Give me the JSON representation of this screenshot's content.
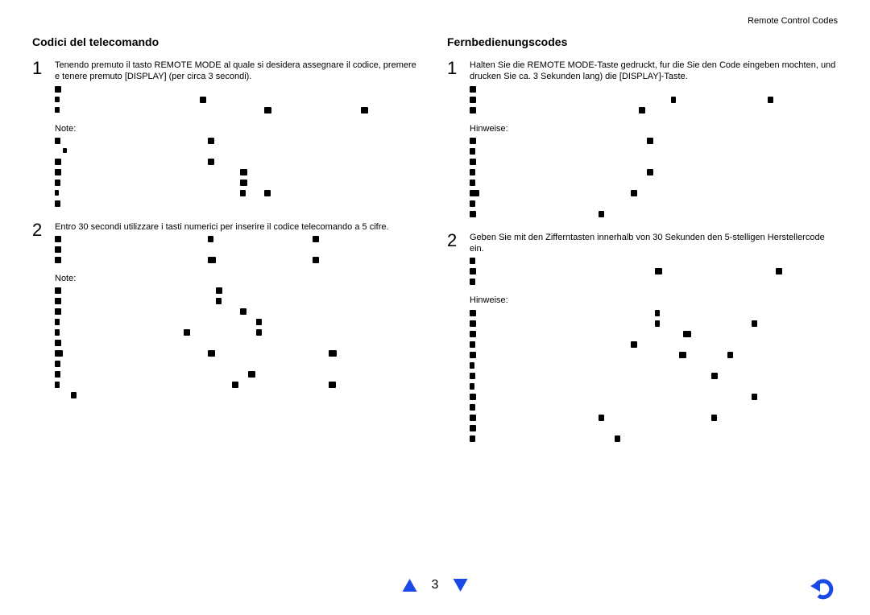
{
  "header": {
    "right": "Remote Control Codes"
  },
  "left": {
    "title": "Codici del telecomando",
    "step1": {
      "num": "1",
      "text": "Tenendo premuto il tasto REMOTE MODE al quale si desidera assegnare il codice, premere e tenere premuto [DISPLAY] (per circa 3 secondi).",
      "note": "Note:"
    },
    "step2": {
      "num": "2",
      "text": "Entro 30 secondi utilizzare i tasti numerici per inserire il codice telecomando a 5 cifre.",
      "note": "Note:"
    }
  },
  "right": {
    "title": "Fernbedienungscodes",
    "step1": {
      "num": "1",
      "text": "Halten Sie die REMOTE MODE-Taste gedruckt, fur die Sie den Code eingeben mochten, und drucken Sie ca. 3 Sekunden lang) die [DISPLAY]-Taste.",
      "note": "Hinweise:"
    },
    "step2": {
      "num": "2",
      "text": "Geben Sie mit den Zifferntasten innerhalb von 30 Sekunden den 5-stelligen Herstellercode ein.",
      "note": "Hinweise:"
    }
  },
  "footer": {
    "page": "3"
  },
  "colors": {
    "accent": "#1a49e6",
    "text": "#000000",
    "bg": "#ffffff"
  },
  "garble": {
    "left_s1_a": [
      [
        [
          0,
          8,
          8
        ]
      ],
      [
        [
          0,
          6,
          7
        ],
        [
          180,
          8,
          8
        ]
      ],
      [
        [
          0,
          6,
          7
        ],
        [
          260,
          9,
          8
        ],
        [
          380,
          9,
          8
        ]
      ]
    ],
    "left_s1_b": [
      [
        [
          0,
          7,
          8
        ],
        [
          190,
          8,
          8
        ]
      ],
      [
        [
          10,
          5,
          6
        ]
      ],
      [
        [
          0,
          8,
          8
        ],
        [
          190,
          8,
          8
        ]
      ],
      [
        [
          0,
          8,
          8
        ],
        [
          230,
          9,
          8
        ]
      ],
      [
        [
          0,
          7,
          8
        ],
        [
          230,
          9,
          8
        ]
      ],
      [
        [
          0,
          5,
          7
        ],
        [
          230,
          7,
          8
        ],
        [
          260,
          8,
          8
        ]
      ],
      [
        [
          0,
          7,
          8
        ]
      ]
    ],
    "left_s2_a": [
      [
        [
          0,
          8,
          8
        ],
        [
          190,
          7,
          8
        ],
        [
          320,
          8,
          8
        ]
      ],
      [
        [
          0,
          8,
          8
        ]
      ],
      [
        [
          0,
          8,
          8
        ],
        [
          190,
          10,
          8
        ],
        [
          320,
          8,
          8
        ]
      ]
    ],
    "left_s2_b": [
      [
        [
          0,
          8,
          8
        ],
        [
          200,
          8,
          8
        ]
      ],
      [
        [
          0,
          8,
          8
        ],
        [
          200,
          7,
          8
        ]
      ],
      [
        [
          0,
          8,
          8
        ],
        [
          230,
          8,
          8
        ]
      ],
      [
        [
          0,
          6,
          8
        ],
        [
          250,
          7,
          8
        ]
      ],
      [
        [
          0,
          6,
          8
        ],
        [
          160,
          8,
          8
        ],
        [
          250,
          7,
          8
        ]
      ],
      [
        [
          0,
          8,
          8
        ]
      ],
      [
        [
          0,
          10,
          8
        ],
        [
          190,
          9,
          8
        ],
        [
          340,
          10,
          8
        ]
      ],
      [
        [
          0,
          7,
          8
        ]
      ],
      [
        [
          0,
          7,
          8
        ],
        [
          240,
          9,
          8
        ]
      ],
      [
        [
          0,
          6,
          8
        ],
        [
          220,
          8,
          8
        ],
        [
          340,
          9,
          8
        ]
      ],
      [
        [
          20,
          7,
          8
        ]
      ]
    ],
    "right_s1_a": [
      [
        [
          0,
          8,
          8
        ]
      ],
      [
        [
          0,
          8,
          8
        ],
        [
          250,
          6,
          8
        ],
        [
          370,
          7,
          8
        ]
      ],
      [
        [
          0,
          8,
          8
        ],
        [
          210,
          8,
          8
        ]
      ]
    ],
    "right_s1_b": [
      [
        [
          0,
          8,
          8
        ],
        [
          220,
          8,
          8
        ]
      ],
      [
        [
          0,
          7,
          8
        ]
      ],
      [
        [
          0,
          8,
          8
        ]
      ],
      [
        [
          0,
          7,
          8
        ],
        [
          220,
          8,
          8
        ]
      ],
      [
        [
          0,
          7,
          8
        ]
      ],
      [
        [
          0,
          12,
          8
        ],
        [
          200,
          8,
          8
        ]
      ],
      [
        [
          0,
          7,
          8
        ]
      ],
      [
        [
          0,
          8,
          8
        ],
        [
          160,
          7,
          8
        ]
      ]
    ],
    "right_s2_a": [
      [
        [
          0,
          7,
          8
        ]
      ],
      [
        [
          0,
          8,
          8
        ],
        [
          230,
          9,
          8
        ],
        [
          380,
          8,
          8
        ]
      ],
      [
        [
          0,
          7,
          8
        ]
      ]
    ],
    "right_s2_b": [
      [
        [
          0,
          8,
          8
        ],
        [
          230,
          6,
          8
        ]
      ],
      [
        [
          0,
          8,
          8
        ],
        [
          230,
          6,
          8
        ],
        [
          350,
          7,
          8
        ]
      ],
      [
        [
          0,
          8,
          8
        ],
        [
          265,
          10,
          8
        ]
      ],
      [
        [
          0,
          7,
          8
        ],
        [
          200,
          8,
          8
        ]
      ],
      [
        [
          0,
          8,
          8
        ],
        [
          260,
          9,
          8
        ],
        [
          320,
          7,
          8
        ]
      ],
      [
        [
          0,
          6,
          8
        ]
      ],
      [
        [
          0,
          7,
          8
        ],
        [
          300,
          8,
          8
        ]
      ],
      [
        [
          0,
          6,
          8
        ]
      ],
      [
        [
          0,
          8,
          8
        ],
        [
          350,
          7,
          8
        ]
      ],
      [
        [
          0,
          7,
          8
        ]
      ],
      [
        [
          0,
          8,
          8
        ],
        [
          160,
          7,
          8
        ],
        [
          300,
          7,
          8
        ]
      ],
      [
        [
          0,
          8,
          8
        ]
      ],
      [
        [
          0,
          7,
          8
        ],
        [
          180,
          7,
          8
        ]
      ]
    ]
  }
}
